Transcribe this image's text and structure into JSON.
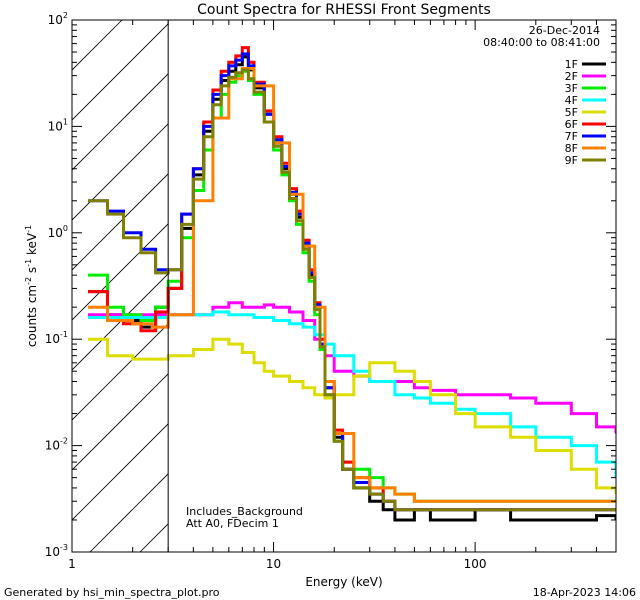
{
  "chart_data": {
    "type": "line",
    "title": "Count Spectra for RHESSI Front Segments",
    "xlabel": "Energy (keV)",
    "ylabel_main": "counts cm",
    "ylabel_sup1": "-2",
    "ylabel_mid": " s",
    "ylabel_sup2": "-1",
    "ylabel_end": " keV",
    "ylabel_sup3": "-1",
    "xscale": "log",
    "yscale": "log",
    "xlim": [
      1,
      500
    ],
    "ylim": [
      0.001,
      100
    ],
    "x_ticks": [
      {
        "value": 1,
        "label": "1"
      },
      {
        "value": 10,
        "label": "10"
      },
      {
        "value": 100,
        "label": "100"
      }
    ],
    "y_ticks": [
      {
        "value": 0.001,
        "base": "10",
        "exp": "-3"
      },
      {
        "value": 0.01,
        "base": "10",
        "exp": "-2"
      },
      {
        "value": 0.1,
        "base": "10",
        "exp": "-1"
      },
      {
        "value": 1,
        "base": "10",
        "exp": "0"
      },
      {
        "value": 10,
        "base": "10",
        "exp": "1"
      },
      {
        "value": 100,
        "base": "10",
        "exp": "2"
      }
    ],
    "date": "26-Dec-2014",
    "time_range": "08:40:00 to 08:41:00",
    "hatched_region_max_keV": 3,
    "annotation_1": "Includes_Background",
    "annotation_2": "Att A0, FDecim 1",
    "footer_left": "Generated by hsi_min_spectra_plot.pro",
    "footer_right": "18-Apr-2023 14:06",
    "series": [
      {
        "name": "1F",
        "color": "#000000",
        "x": [
          1.2,
          1.5,
          1.8,
          2.2,
          2.6,
          3.0,
          3.5,
          4.0,
          4.5,
          5.0,
          5.5,
          6.0,
          6.5,
          7.0,
          7.5,
          8.0,
          9.0,
          10,
          11,
          12,
          13,
          14,
          15,
          16,
          17,
          18,
          20,
          22,
          25,
          30,
          35,
          40,
          50,
          60,
          80,
          100,
          150,
          200,
          300,
          400,
          500
        ],
        "y": [
          0.28,
          0.17,
          0.15,
          0.13,
          0.2,
          0.3,
          1.1,
          3.5,
          9,
          18,
          27,
          33,
          38,
          45,
          34,
          23,
          13,
          7,
          4,
          2.3,
          1.4,
          0.75,
          0.4,
          0.2,
          0.09,
          0.035,
          0.012,
          0.006,
          0.004,
          0.003,
          0.0025,
          0.002,
          0.0025,
          0.002,
          0.002,
          0.0025,
          0.002,
          0.002,
          0.002,
          0.0022,
          0.002
        ]
      },
      {
        "name": "2F",
        "color": "#ff00ff",
        "x": [
          1.2,
          1.5,
          2.0,
          2.5,
          3.0,
          4.0,
          5.0,
          6.0,
          7.0,
          8.0,
          9.0,
          10,
          12,
          14,
          16,
          18,
          20,
          25,
          30,
          40,
          50,
          60,
          80,
          100,
          150,
          200,
          300,
          400,
          500
        ],
        "y": [
          0.17,
          0.17,
          0.17,
          0.17,
          0.17,
          0.17,
          0.2,
          0.22,
          0.2,
          0.2,
          0.21,
          0.2,
          0.18,
          0.15,
          0.1,
          0.07,
          0.05,
          0.045,
          0.04,
          0.04,
          0.035,
          0.033,
          0.03,
          0.03,
          0.028,
          0.025,
          0.02,
          0.015,
          0.013
        ]
      },
      {
        "name": "3F",
        "color": "#00ee00",
        "x": [
          1.2,
          1.5,
          1.8,
          2.2,
          2.6,
          3.0,
          3.5,
          4.0,
          4.5,
          5.0,
          5.5,
          6.0,
          6.5,
          7.0,
          7.5,
          8.0,
          9.0,
          10,
          11,
          12,
          13,
          14,
          15,
          16,
          17,
          18,
          20,
          22,
          25,
          30,
          35,
          40,
          50,
          60,
          80,
          100,
          150,
          200,
          300,
          400,
          500
        ],
        "y": [
          0.4,
          0.2,
          0.17,
          0.15,
          0.2,
          0.35,
          0.9,
          2.5,
          6,
          12,
          20,
          26,
          30,
          33,
          27,
          20,
          11,
          6,
          3.5,
          2,
          1.2,
          0.65,
          0.35,
          0.17,
          0.08,
          0.03,
          0.011,
          0.007,
          0.006,
          0.005,
          0.004,
          0.0035,
          0.003,
          0.003,
          0.003,
          0.003,
          0.003,
          0.003,
          0.003,
          0.003,
          0.003
        ]
      },
      {
        "name": "4F",
        "color": "#00ffff",
        "x": [
          1.2,
          1.5,
          2.0,
          2.5,
          3.0,
          4.0,
          5.0,
          6.0,
          7.0,
          8.0,
          9.0,
          10,
          12,
          14,
          16,
          18,
          20,
          25,
          30,
          40,
          50,
          60,
          80,
          100,
          150,
          200,
          300,
          400,
          500
        ],
        "y": [
          0.16,
          0.16,
          0.16,
          0.16,
          0.17,
          0.17,
          0.18,
          0.17,
          0.17,
          0.16,
          0.16,
          0.15,
          0.14,
          0.13,
          0.11,
          0.09,
          0.07,
          0.05,
          0.04,
          0.03,
          0.028,
          0.025,
          0.022,
          0.02,
          0.015,
          0.012,
          0.01,
          0.007,
          0.005
        ]
      },
      {
        "name": "5F",
        "color": "#dddd00",
        "x": [
          1.2,
          1.5,
          2.0,
          2.5,
          3.0,
          4.0,
          5.0,
          6.0,
          7.0,
          8.0,
          9.0,
          10,
          12,
          14,
          16,
          18,
          20,
          25,
          30,
          35,
          40,
          50,
          60,
          80,
          100,
          150,
          200,
          300,
          400,
          500
        ],
        "y": [
          0.1,
          0.07,
          0.065,
          0.065,
          0.07,
          0.08,
          0.1,
          0.09,
          0.075,
          0.06,
          0.05,
          0.045,
          0.04,
          0.035,
          0.03,
          0.028,
          0.03,
          0.045,
          0.06,
          0.06,
          0.05,
          0.04,
          0.03,
          0.02,
          0.015,
          0.012,
          0.009,
          0.006,
          0.004,
          0.0035
        ]
      },
      {
        "name": "6F",
        "color": "#ff0000",
        "x": [
          1.2,
          1.5,
          1.8,
          2.2,
          2.6,
          3.0,
          3.5,
          4.0,
          4.5,
          5.0,
          5.5,
          6.0,
          6.5,
          7.0,
          7.5,
          8.0,
          9.0,
          10,
          11,
          12,
          13,
          14,
          15,
          16,
          17,
          18,
          20,
          22,
          25,
          30,
          35,
          40,
          50,
          60,
          80,
          100,
          150,
          200,
          300,
          400,
          500
        ],
        "y": [
          0.28,
          0.15,
          0.14,
          0.12,
          0.18,
          0.3,
          1.5,
          4,
          11,
          22,
          33,
          40,
          46,
          55,
          40,
          26,
          14,
          8,
          4.5,
          2.6,
          1.6,
          0.85,
          0.45,
          0.22,
          0.1,
          0.04,
          0.014,
          0.007,
          0.005,
          0.004,
          0.003,
          0.0025,
          0.0025,
          0.0025,
          0.0025,
          0.0025,
          0.0025,
          0.0025,
          0.0025,
          0.0025,
          0.0025
        ]
      },
      {
        "name": "7F",
        "color": "#0000ff",
        "x": [
          1.2,
          1.5,
          1.8,
          2.2,
          2.6,
          3.0,
          3.5,
          4.0,
          4.5,
          5.0,
          5.5,
          6.0,
          6.5,
          7.0,
          7.5,
          8.0,
          9.0,
          10,
          11,
          12,
          13,
          14,
          15,
          16,
          17,
          18,
          20,
          22,
          25,
          30,
          35,
          40,
          50,
          60,
          80,
          100,
          150,
          200,
          300,
          400,
          500
        ],
        "y": [
          2.0,
          1.6,
          1.0,
          0.7,
          0.45,
          0.45,
          1.5,
          4,
          10,
          20,
          30,
          37,
          42,
          48,
          37,
          25,
          13,
          7.5,
          4.2,
          2.4,
          1.5,
          0.8,
          0.42,
          0.21,
          0.09,
          0.035,
          0.013,
          0.006,
          0.0045,
          0.0035,
          0.003,
          0.0025,
          0.0025,
          0.0025,
          0.0025,
          0.0025,
          0.0025,
          0.0025,
          0.0025,
          0.0025,
          0.0025
        ]
      },
      {
        "name": "8F",
        "color": "#ff8000",
        "x": [
          1.2,
          1.5,
          2.0,
          2.5,
          3.0,
          4.0,
          5.0,
          6.0,
          7.0,
          8.0,
          10,
          12,
          14,
          16,
          18,
          20,
          25,
          30,
          40,
          50,
          60,
          80,
          100,
          150,
          200,
          300,
          400,
          500
        ],
        "y": [
          0.2,
          0.15,
          0.14,
          0.13,
          0.17,
          2,
          12,
          28,
          35,
          24,
          7,
          2.3,
          0.75,
          0.2,
          0.04,
          0.013,
          0.005,
          0.004,
          0.0035,
          0.003,
          0.003,
          0.003,
          0.003,
          0.003,
          0.003,
          0.003,
          0.003,
          0.003
        ]
      },
      {
        "name": "9F",
        "color": "#808000",
        "x": [
          1.2,
          1.5,
          1.8,
          2.2,
          2.6,
          3.0,
          3.5,
          4.0,
          4.5,
          5.0,
          5.5,
          6.0,
          6.5,
          7.0,
          7.5,
          8.0,
          9.0,
          10,
          11,
          12,
          13,
          14,
          15,
          16,
          17,
          18,
          20,
          22,
          25,
          30,
          35,
          40,
          50,
          60,
          80,
          100,
          150,
          200,
          300,
          400,
          500
        ],
        "y": [
          2.0,
          1.5,
          0.9,
          0.65,
          0.42,
          0.45,
          1.2,
          3.2,
          8,
          16,
          24,
          29,
          32,
          34,
          28,
          21,
          11,
          6.5,
          3.7,
          2.1,
          1.3,
          0.7,
          0.38,
          0.19,
          0.085,
          0.03,
          0.011,
          0.006,
          0.004,
          0.0035,
          0.003,
          0.0025,
          0.0025,
          0.0025,
          0.0025,
          0.0025,
          0.0025,
          0.0025,
          0.0025,
          0.0025,
          0.0025
        ]
      }
    ]
  }
}
